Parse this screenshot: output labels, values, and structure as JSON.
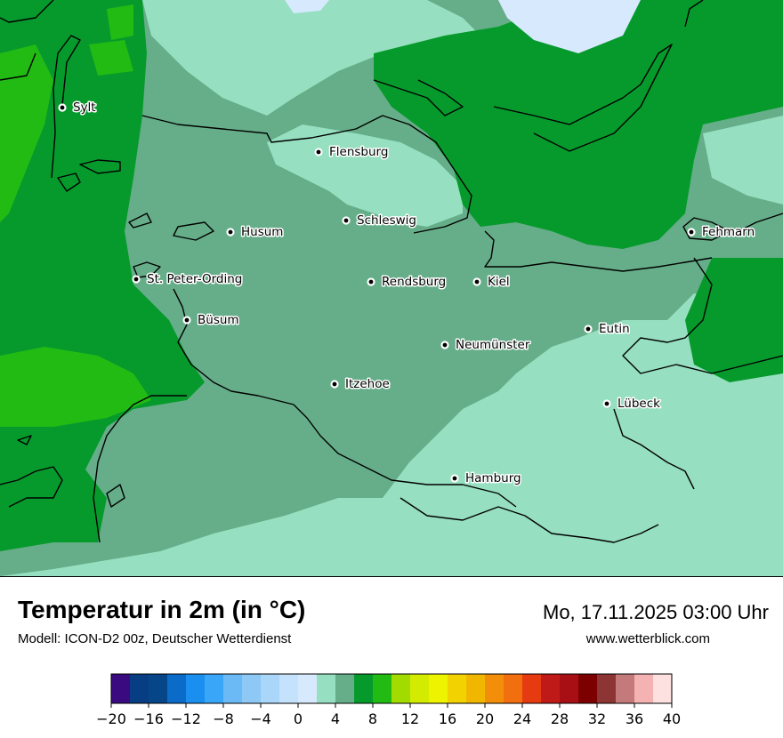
{
  "map": {
    "cities": [
      {
        "id": "sylt",
        "name": "Sylt"
      },
      {
        "id": "flensburg",
        "name": "Flensburg"
      },
      {
        "id": "schleswig",
        "name": "Schleswig"
      },
      {
        "id": "husum",
        "name": "Husum"
      },
      {
        "id": "fehmarn",
        "name": "Fehmarn"
      },
      {
        "id": "st-peter-ording",
        "name": "St. Peter-Ording"
      },
      {
        "id": "rendsburg",
        "name": "Rendsburg"
      },
      {
        "id": "kiel",
        "name": "Kiel"
      },
      {
        "id": "buesum",
        "name": "Büsum"
      },
      {
        "id": "eutin",
        "name": "Eutin"
      },
      {
        "id": "neumuenster",
        "name": "Neumünster"
      },
      {
        "id": "itzehoe",
        "name": "Itzehoe"
      },
      {
        "id": "luebeck",
        "name": "Lübeck"
      },
      {
        "id": "hamburg",
        "name": "Hamburg"
      }
    ],
    "field_colors": {
      "c0_2": "#d7e9fd",
      "c2_4": "#96dfc0",
      "c4_6": "#66ae89",
      "c6_8": "#069a2c",
      "c8_10": "#22bb14"
    }
  },
  "footer": {
    "title": "Temperatur in 2m (in °C)",
    "model": "Modell: ICON-D2 00z, Deutscher Wetterdienst",
    "datetime": "Mo, 17.11.2025 03:00 Uhr",
    "website": "www.wetterblick.com"
  },
  "legend": {
    "unit": "°C",
    "range": [
      -20,
      40
    ],
    "step": 2,
    "tick_labels": [
      "−20",
      "−16",
      "−12",
      "−8",
      "−4",
      "0",
      "4",
      "8",
      "12",
      "16",
      "20",
      "24",
      "28",
      "32",
      "36",
      "40"
    ],
    "colors": [
      "#3a0a80",
      "#073d82",
      "#064587",
      "#0a6bc8",
      "#1a8ff0",
      "#3aa6f7",
      "#6cbaf5",
      "#8ec8f5",
      "#a9d6f9",
      "#c4e2fb",
      "#d7e9fd",
      "#96dfc0",
      "#66ae89",
      "#069a2c",
      "#22bb14",
      "#a2db00",
      "#d3eb00",
      "#eef400",
      "#f2d200",
      "#f1b700",
      "#f28e0a",
      "#f26f0f",
      "#e63a10",
      "#c01a18",
      "#a80f14",
      "#7d0000",
      "#8d3535",
      "#c47a7a",
      "#f5b2b2",
      "#fde0e0"
    ]
  }
}
